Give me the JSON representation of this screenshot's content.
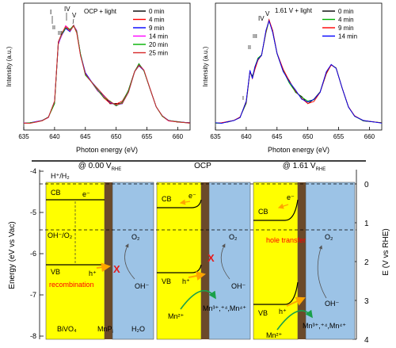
{
  "chart_data": [
    {
      "type": "line",
      "legend_title": "OCP + light",
      "xlabel": "Photon energy (eV)",
      "ylabel": "Intensity (a.u.)",
      "xlim": [
        635,
        662
      ],
      "xticks": [
        "635",
        "640",
        "645",
        "650",
        "655",
        "660"
      ],
      "peak_labels": [
        "I",
        "II",
        "III",
        "IV",
        "V"
      ],
      "series": [
        {
          "name": "0 min",
          "color": "#000000"
        },
        {
          "name": "4 min",
          "color": "#ff0000"
        },
        {
          "name": "9 min",
          "color": "#0000ff"
        },
        {
          "name": "14 min",
          "color": "#ff00ff"
        },
        {
          "name": "20 min",
          "color": "#00b000"
        },
        {
          "name": "25 min",
          "color": "#d62728"
        }
      ],
      "x": [
        635,
        636,
        637,
        638,
        639,
        640,
        640.6,
        641.2,
        641.8,
        642.5,
        643.1,
        643.6,
        644.2,
        645,
        646,
        647,
        648,
        649,
        650,
        651,
        652,
        653,
        653.7,
        654.5,
        655.5,
        656.5,
        657.5,
        658.5,
        660,
        662
      ],
      "y_mean": [
        0.02,
        0.02,
        0.03,
        0.04,
        0.07,
        0.2,
        0.72,
        0.8,
        0.86,
        0.83,
        0.88,
        0.82,
        0.62,
        0.45,
        0.37,
        0.31,
        0.25,
        0.2,
        0.18,
        0.2,
        0.3,
        0.48,
        0.53,
        0.48,
        0.32,
        0.16,
        0.08,
        0.04,
        0.03,
        0.02
      ]
    },
    {
      "type": "line",
      "legend_title": "1.61 V + light",
      "xlabel": "Photon energy (eV)",
      "ylabel": "Intensity (a.u.)",
      "xlim": [
        635,
        662
      ],
      "xticks": [
        "635",
        "640",
        "645",
        "650",
        "655",
        "660"
      ],
      "peak_labels": [
        "I",
        "II",
        "III",
        "IV",
        "V"
      ],
      "series": [
        {
          "name": "0 min",
          "color": "#000000"
        },
        {
          "name": "4 min",
          "color": "#00b000"
        },
        {
          "name": "9 min",
          "color": "#ff0000"
        },
        {
          "name": "14 min",
          "color": "#0000ff"
        }
      ],
      "x": [
        635,
        636,
        637,
        638,
        639,
        640,
        640.6,
        641,
        641.4,
        641.9,
        642.5,
        643.2,
        643.7,
        644.3,
        645,
        646,
        647,
        648,
        649,
        650,
        651,
        652,
        653,
        653.8,
        654.6,
        655.6,
        656.6,
        657.6,
        659,
        662
      ],
      "y_mean": [
        0.02,
        0.02,
        0.03,
        0.04,
        0.07,
        0.2,
        0.48,
        0.42,
        0.5,
        0.58,
        0.62,
        0.82,
        0.92,
        0.82,
        0.62,
        0.48,
        0.38,
        0.3,
        0.24,
        0.2,
        0.22,
        0.3,
        0.46,
        0.53,
        0.5,
        0.32,
        0.16,
        0.08,
        0.04,
        0.02
      ]
    }
  ],
  "diagram": {
    "left_axis_label": "Energy (eV vs Vac)",
    "left_ticks": [
      "-4",
      "-5",
      "-6",
      "-7",
      "-8"
    ],
    "right_axis_label": "E (V vs RHE)",
    "right_ticks": [
      "0",
      "1",
      "2",
      "3",
      "4"
    ],
    "h_couple": "H⁺/H₂",
    "oh_couple": "OH⁻/O₂",
    "panels": [
      {
        "title_main": "@ 0.00 V",
        "title_sub": "RHE",
        "cb": "CB",
        "vb": "VB",
        "electron": "e⁻",
        "hole": "h⁺",
        "product": "O₂",
        "reactant": "OH⁻",
        "x_mark": "X",
        "note": "recombination",
        "label_semiconductor": "BiVO₄",
        "label_cocatalyst": "MnP",
        "label_cocatalyst_sub": "i",
        "label_electrolyte": "H₂O"
      },
      {
        "title_main": "OCP",
        "cb": "CB",
        "vb": "VB",
        "electron": "e⁻",
        "hole": "h⁺",
        "product": "O₂",
        "reactant": "OH⁻",
        "x_mark": "X",
        "ion_left": "Mn²⁺",
        "ion_right": "Mn³⁺,⁺⁴,Mn⁴⁺"
      },
      {
        "title_main": "@ 1.61 V",
        "title_sub": "RHE",
        "cb": "CB",
        "vb": "VB",
        "electron": "e⁻",
        "hole": "h⁺",
        "product": "O₂",
        "reactant": "OH⁻",
        "note": "hole transfer",
        "ion_left": "Mn²⁺",
        "ion_right": "Mn³⁺,⁺⁴,Mn⁴⁺"
      }
    ]
  },
  "colors": {
    "semiconductor": "#ffff00",
    "cocatalyst": "#6b4a2a",
    "electrolyte": "#9cc3e6",
    "hole_arrow": "#ffa500",
    "ion_arrow": "#1aa04a",
    "x_mark": "#e41a1c",
    "note": "#ff0000"
  }
}
